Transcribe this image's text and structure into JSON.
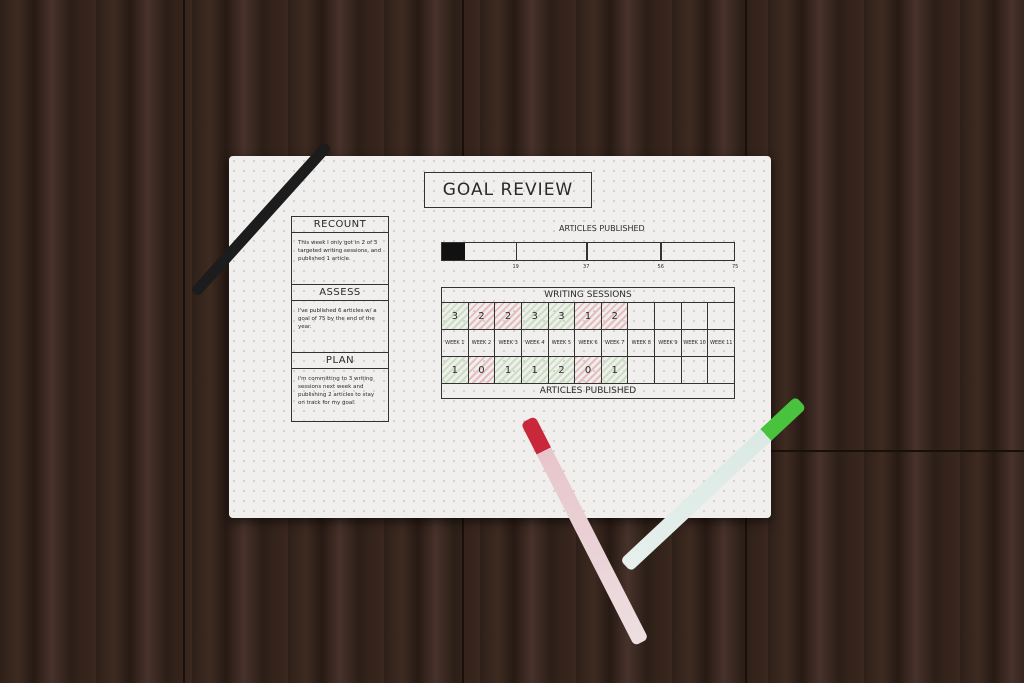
{
  "paper": {
    "title": "GOAL REVIEW",
    "sections": [
      {
        "heading": "RECOUNT",
        "text": "This week I only got in 2 of 3 targeted writing sessions, and published 1 article."
      },
      {
        "heading": "ASSESS",
        "text": "I've published 6 articles w/ a goal of 75 by the end of the year."
      },
      {
        "heading": "PLAN",
        "text": "I'm committing to 3 writing sessions next week and publishing 2 articles to stay on track for my goal."
      }
    ],
    "progress": {
      "title": "ARTICLES PUBLISHED",
      "value": 6,
      "goal": 75,
      "ticks": [
        "19",
        "37",
        "56",
        "75"
      ]
    },
    "tracker": {
      "header": "WRITING SESSIONS",
      "footer": "ARTICLES PUBLISHED",
      "weeks": [
        "WEEK 1",
        "WEEK 2",
        "WEEK 3",
        "WEEK 4",
        "WEEK 5",
        "WEEK 6",
        "WEEK 7",
        "WEEK 8",
        "WEEK 9",
        "WEEK 10",
        "WEEK 11"
      ],
      "sessions": [
        "3",
        "2",
        "2",
        "3",
        "3",
        "1",
        "2",
        "",
        "",
        "",
        ""
      ],
      "articles": [
        "1",
        "0",
        "1",
        "1",
        "2",
        "0",
        "1",
        "",
        "",
        "",
        ""
      ],
      "session_status": [
        "met",
        "missed",
        "missed",
        "met",
        "met",
        "missed",
        "missed",
        "",
        "",
        "",
        ""
      ],
      "article_status": [
        "met",
        "missed",
        "met",
        "met",
        "met",
        "missed",
        "met",
        "",
        "",
        "",
        ""
      ]
    },
    "colors": {
      "met": "#c9dfc0",
      "missed": "#e6bcbc"
    }
  }
}
